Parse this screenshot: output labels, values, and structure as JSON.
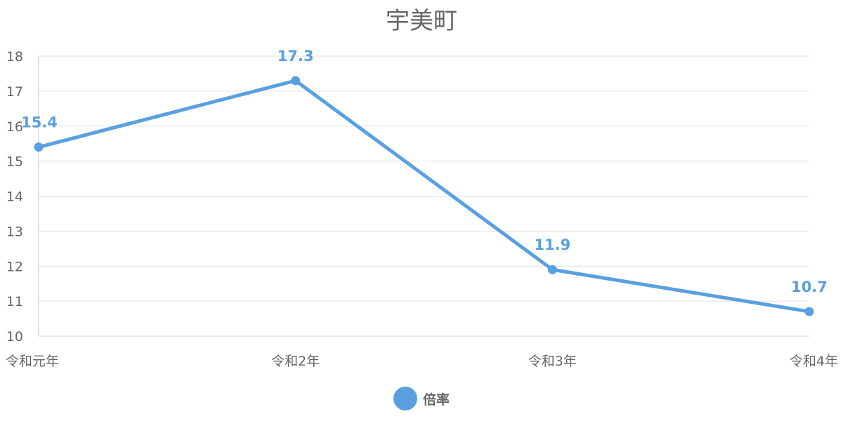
{
  "chart_data": {
    "type": "line",
    "title": "宇美町",
    "categories": [
      "令和元年",
      "令和2年",
      "令和3年",
      "令和4年"
    ],
    "series": [
      {
        "name": "倍率",
        "values": [
          15.4,
          17.3,
          11.9,
          10.7
        ],
        "color": "#5aa0e0"
      }
    ],
    "data_labels": [
      "15.4",
      "17.3",
      "11.9",
      "10.7"
    ],
    "ylim": [
      10,
      18
    ],
    "yticks": [
      "10",
      "11",
      "12",
      "13",
      "14",
      "15",
      "16",
      "17",
      "18"
    ],
    "grid": true,
    "legend_position": "bottom"
  }
}
